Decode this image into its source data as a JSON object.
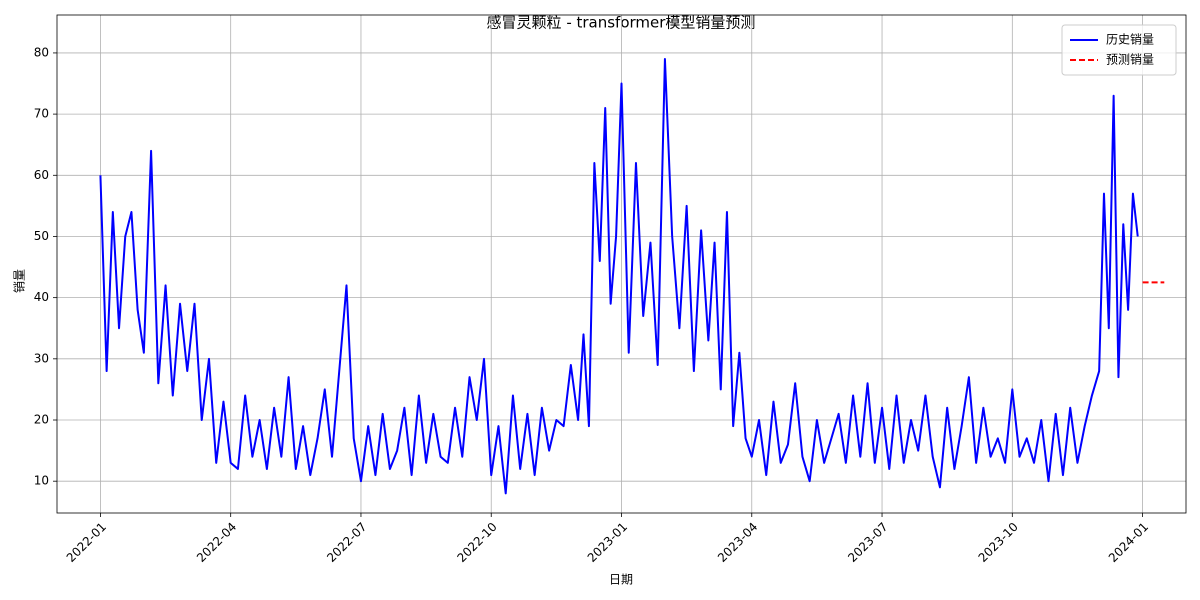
{
  "chart_data": {
    "type": "line",
    "title": "感冒灵颗粒 - transformer模型销量预测",
    "x_label": "日期",
    "y_label": "销量",
    "grid": true,
    "legend": "upper right",
    "xlim": [
      "2021-12",
      "2024-02"
    ],
    "xticks": [
      "2022-01",
      "2022-04",
      "2022-07",
      "2022-10",
      "2023-01",
      "2023-04",
      "2023-07",
      "2023-10",
      "2024-01"
    ],
    "ylim": [
      4.8,
      86.2
    ],
    "yticks": [
      10,
      20,
      30,
      40,
      50,
      60,
      70,
      80
    ],
    "series": [
      {
        "name": "历史销量",
        "color": "#0000ff",
        "style": "solid",
        "x": [
          "2022-01",
          "2022-01",
          "2022-01",
          "2022-01",
          "2022-01",
          "2022-01",
          "2022-01",
          "2022-02",
          "2022-02",
          "2022-02",
          "2022-02",
          "2022-02",
          "2022-02",
          "2022-03",
          "2022-03",
          "2022-03",
          "2022-03",
          "2022-03",
          "2022-03",
          "2022-04",
          "2022-04",
          "2022-04",
          "2022-04",
          "2022-04",
          "2022-04",
          "2022-05",
          "2022-05",
          "2022-05",
          "2022-05",
          "2022-05",
          "2022-05",
          "2022-06",
          "2022-06",
          "2022-06",
          "2022-06",
          "2022-06",
          "2022-06",
          "2022-07",
          "2022-07",
          "2022-07",
          "2022-07",
          "2022-07",
          "2022-07",
          "2022-08",
          "2022-08",
          "2022-08",
          "2022-08",
          "2022-08",
          "2022-08",
          "2022-09",
          "2022-09",
          "2022-09",
          "2022-09",
          "2022-09",
          "2022-09",
          "2022-10",
          "2022-10",
          "2022-10",
          "2022-10",
          "2022-10",
          "2022-10",
          "2022-11",
          "2022-11",
          "2022-11",
          "2022-11",
          "2022-11",
          "2022-11",
          "2022-12",
          "2022-12",
          "2022-12",
          "2022-12",
          "2022-12",
          "2022-12",
          "2022-12",
          "2022-12",
          "2023-01",
          "2023-01",
          "2023-01",
          "2023-01",
          "2023-01",
          "2023-01",
          "2023-02",
          "2023-02",
          "2023-02",
          "2023-02",
          "2023-02",
          "2023-02",
          "2023-03",
          "2023-03",
          "2023-03",
          "2023-03",
          "2023-03",
          "2023-03",
          "2023-03",
          "2023-04",
          "2023-04",
          "2023-04",
          "2023-04",
          "2023-04",
          "2023-04",
          "2023-05",
          "2023-05",
          "2023-05",
          "2023-05",
          "2023-05",
          "2023-05",
          "2023-06",
          "2023-06",
          "2023-06",
          "2023-06",
          "2023-06",
          "2023-06",
          "2023-07",
          "2023-07",
          "2023-07",
          "2023-07",
          "2023-07",
          "2023-07",
          "2023-08",
          "2023-08",
          "2023-08",
          "2023-08",
          "2023-08",
          "2023-08",
          "2023-09",
          "2023-09",
          "2023-09",
          "2023-09",
          "2023-09",
          "2023-09",
          "2023-10",
          "2023-10",
          "2023-10",
          "2023-10",
          "2023-10",
          "2023-10",
          "2023-11",
          "2023-11",
          "2023-11",
          "2023-11",
          "2023-11",
          "2023-11",
          "2023-12",
          "2023-12",
          "2023-12",
          "2023-12",
          "2023-12",
          "2023-12",
          "2023-12",
          "2023-12",
          "2023-12"
        ],
        "values": [
          60,
          28,
          54,
          35,
          50,
          54,
          38,
          31,
          64,
          26,
          42,
          24,
          39,
          28,
          39,
          20,
          30,
          13,
          23,
          13,
          12,
          24,
          14,
          20,
          12,
          22,
          14,
          27,
          12,
          19,
          11,
          17,
          25,
          14,
          28,
          42,
          17,
          10,
          19,
          11,
          21,
          12,
          15,
          22,
          11,
          24,
          13,
          21,
          14,
          13,
          22,
          14,
          27,
          20,
          30,
          11,
          19,
          8,
          24,
          12,
          21,
          11,
          22,
          15,
          20,
          19,
          29,
          20,
          34,
          19,
          62,
          46,
          71,
          39,
          50,
          75,
          31,
          62,
          37,
          49,
          29,
          79,
          50,
          35,
          55,
          28,
          51,
          33,
          49,
          25,
          54,
          19,
          31,
          17,
          14,
          20,
          11,
          23,
          13,
          16,
          26,
          14,
          10,
          20,
          13,
          17,
          21,
          13,
          24,
          14,
          26,
          13,
          22,
          12,
          24,
          13,
          20,
          15,
          24,
          14,
          9,
          22,
          12,
          19,
          27,
          13,
          22,
          14,
          17,
          13,
          25,
          14,
          17,
          13,
          20,
          10,
          21,
          11,
          22,
          13,
          19,
          24,
          28,
          57,
          35,
          73,
          27,
          52,
          38,
          57,
          50
        ]
      },
      {
        "name": "预测销量",
        "color": "#ff0000",
        "style": "dashed",
        "x": [
          "2024-01",
          "2024-01"
        ],
        "values": [
          42.5,
          42.5
        ]
      }
    ]
  }
}
